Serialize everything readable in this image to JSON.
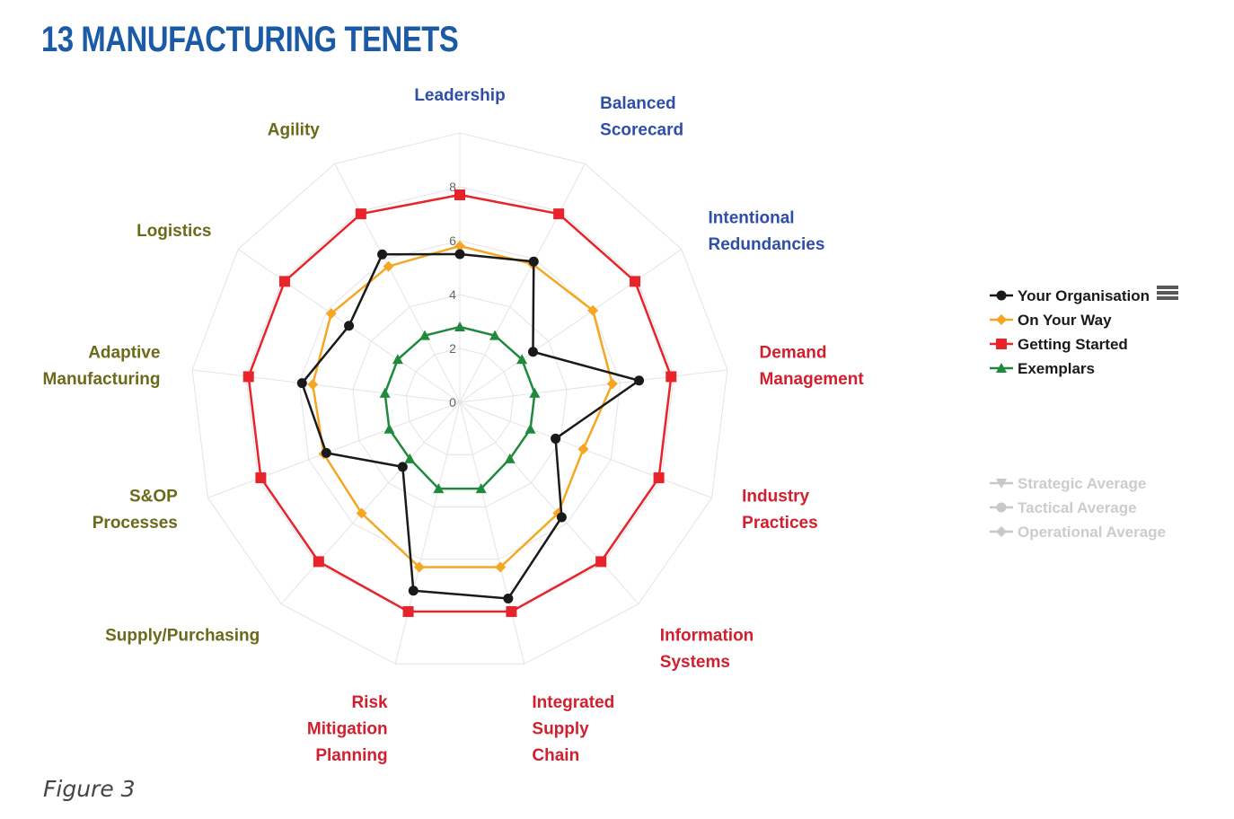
{
  "title": "13 MANUFACTURING TENETS",
  "caption": "Figure 3",
  "chart_data": {
    "type": "radar",
    "axes": [
      {
        "label": [
          "Leadership"
        ],
        "color": "#2f4ea8"
      },
      {
        "label": [
          "Balanced",
          "Scorecard"
        ],
        "color": "#2f4ea8"
      },
      {
        "label": [
          "Intentional",
          "Redundancies"
        ],
        "color": "#2f4ea8"
      },
      {
        "label": [
          "Demand",
          "Management"
        ],
        "color": "#d21f2d"
      },
      {
        "label": [
          "Industry",
          "Practices"
        ],
        "color": "#d21f2d"
      },
      {
        "label": [
          "Information",
          "Systems"
        ],
        "color": "#d21f2d"
      },
      {
        "label": [
          "Integrated",
          "Supply",
          "Chain"
        ],
        "color": "#d21f2d"
      },
      {
        "label": [
          "Risk",
          "Mitigation",
          "Planning"
        ],
        "color": "#d21f2d"
      },
      {
        "label": [
          "Supply/Purchasing"
        ],
        "color": "#6b6a1a"
      },
      {
        "label": [
          "S&OP",
          "Processes"
        ],
        "color": "#6b6a1a"
      },
      {
        "label": [
          "Adaptive",
          "Manufacturing"
        ],
        "color": "#6b6a1a"
      },
      {
        "label": [
          "Logistics"
        ],
        "color": "#6b6a1a"
      },
      {
        "label": [
          "Agility"
        ],
        "color": "#6b6a1a"
      }
    ],
    "ticks": [
      0,
      2,
      4,
      6,
      8
    ],
    "rlim": [
      0,
      10
    ],
    "series": [
      {
        "name": "Your Organisation",
        "color": "#1a1a1a",
        "marker": "circle",
        "values": [
          5.5,
          5.9,
          3.3,
          6.7,
          3.8,
          5.7,
          7.5,
          7.2,
          3.2,
          5.3,
          5.9,
          5.0,
          6.2
        ]
      },
      {
        "name": "On Your Way",
        "color": "#f5a623",
        "marker": "diamond",
        "values": [
          5.8,
          5.8,
          6.0,
          5.7,
          4.9,
          5.5,
          6.3,
          6.3,
          5.5,
          5.4,
          5.5,
          5.8,
          5.7
        ]
      },
      {
        "name": "Getting Started",
        "color": "#e8232a",
        "marker": "square",
        "values": [
          7.7,
          7.9,
          7.9,
          7.9,
          7.9,
          7.9,
          8.0,
          8.0,
          7.9,
          7.9,
          7.9,
          7.9,
          7.9
        ]
      },
      {
        "name": "Exemplars",
        "color": "#1f8a3c",
        "marker": "triangle",
        "values": [
          2.8,
          2.8,
          2.8,
          2.8,
          2.8,
          2.8,
          3.3,
          3.3,
          2.8,
          2.8,
          2.8,
          2.8,
          2.8
        ]
      }
    ],
    "hidden_series": [
      {
        "name": "Strategic Average",
        "color": "#c8c8c8",
        "marker": "triangle-down"
      },
      {
        "name": "Tactical Average",
        "color": "#c8c8c8",
        "marker": "circle"
      },
      {
        "name": "Operational Average",
        "color": "#c8c8c8",
        "marker": "diamond"
      }
    ],
    "legend_icon": "menu-icon",
    "legend_position": "right",
    "grid": true
  }
}
